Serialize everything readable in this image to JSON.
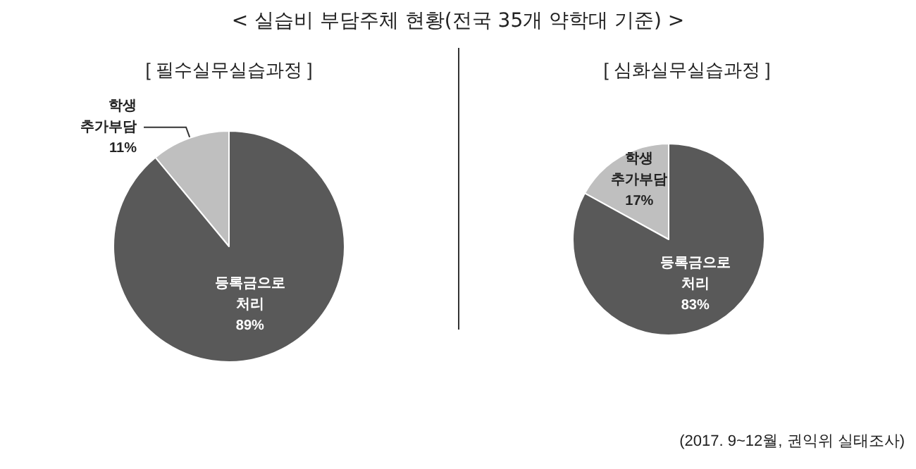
{
  "chart_data": [
    {
      "type": "pie",
      "title": "< 실습비 부담주체 현황(전국 35개 약학대 기준) >",
      "subtitle": "[ 필수실무실습과정 ]",
      "categories": [
        "학생 추가부담",
        "등록금으로 처리"
      ],
      "values": [
        11,
        89
      ],
      "value_labels": [
        "11%",
        "89%"
      ],
      "colors": [
        "#bfbfbf",
        "#595959"
      ]
    },
    {
      "type": "pie",
      "subtitle": "[ 심화실무실습과정 ]",
      "categories": [
        "학생 추가부담",
        "등록금으로 처리"
      ],
      "values": [
        17,
        83
      ],
      "value_labels": [
        "17%",
        "83%"
      ],
      "colors": [
        "#bfbfbf",
        "#595959"
      ],
      "annotations": [
        "(2017. 9~12월, 권익위 실태조사)"
      ]
    }
  ]
}
